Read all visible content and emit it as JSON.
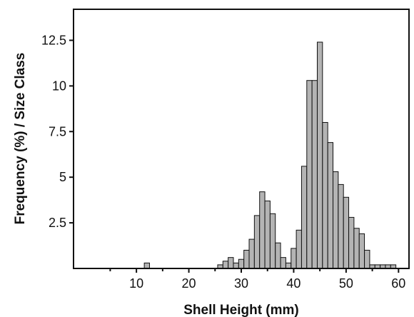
{
  "chart_data": {
    "type": "bar",
    "xlabel": "Shell Height (mm)",
    "ylabel": "Frequency (%) / Size Class",
    "xlim": [
      -2,
      62
    ],
    "ylim": [
      0,
      14.2
    ],
    "xticks": [
      10,
      20,
      30,
      40,
      50,
      60
    ],
    "yticks": [
      2.5,
      5,
      7.5,
      10,
      12.5
    ],
    "minor_xticks": [
      5,
      15,
      25,
      35,
      45,
      55
    ],
    "bin_width": 1,
    "x": [
      12,
      26,
      27,
      28,
      29,
      30,
      31,
      32,
      33,
      34,
      35,
      36,
      37,
      38,
      39,
      40,
      41,
      42,
      43,
      44,
      45,
      46,
      47,
      48,
      49,
      50,
      51,
      52,
      53,
      54,
      55,
      56,
      57,
      58,
      59
    ],
    "values": [
      0.3,
      0.2,
      0.4,
      0.6,
      0.3,
      0.5,
      1.0,
      1.6,
      2.9,
      4.2,
      3.7,
      3.0,
      1.4,
      0.6,
      0.3,
      1.1,
      2.1,
      5.6,
      10.3,
      10.3,
      12.4,
      8.0,
      6.9,
      5.3,
      4.6,
      3.9,
      2.8,
      2.2,
      1.9,
      1.0,
      0.2,
      0.2,
      0.2,
      0.2,
      0.2
    ],
    "colors": {
      "bar_fill": "#b4b4b4",
      "bar_edge": "#111111"
    },
    "grid": false,
    "legend": "none"
  }
}
